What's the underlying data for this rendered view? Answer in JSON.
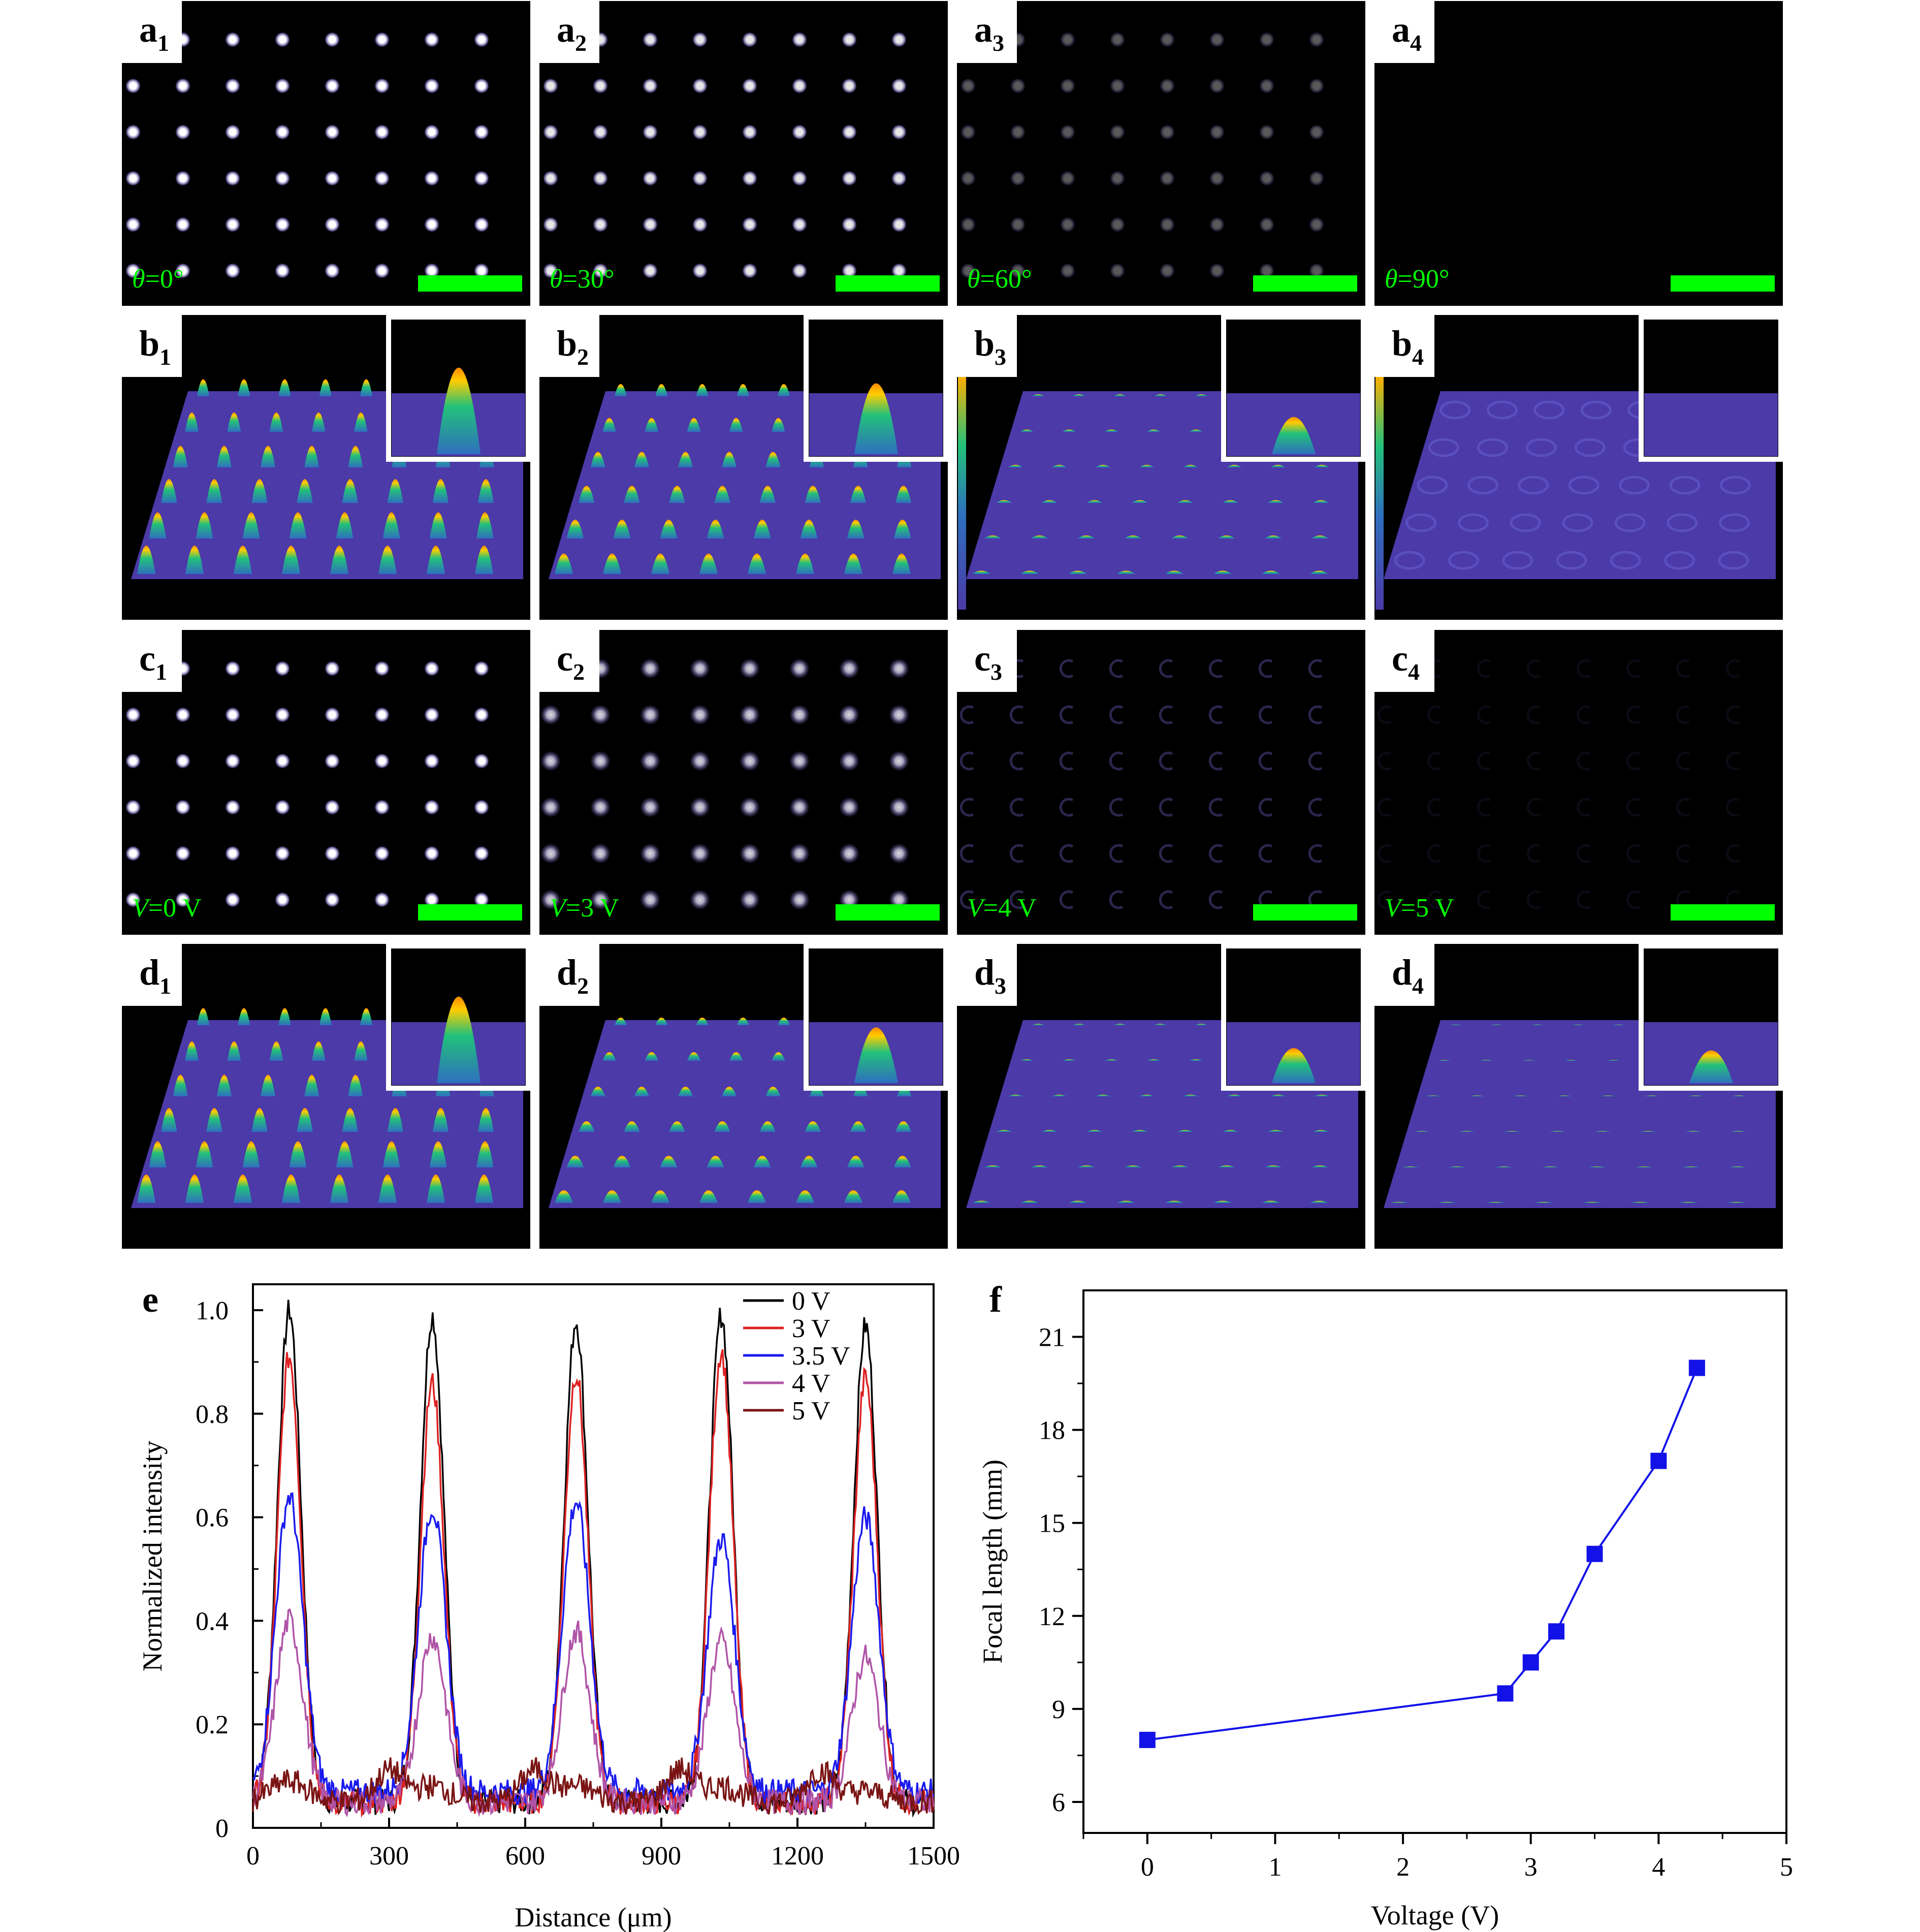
{
  "figure": {
    "colors": {
      "panel_bg": "#000000",
      "spot": "#ffffff",
      "spot_halo": "#c9b8ff",
      "scale_bar": "#00ff00",
      "label_text_green": "#00ff00",
      "surface": "#4b3aa8",
      "peak_tip": "#ffcc00",
      "peak_mid": "#22c17a",
      "peak_base": "#2f6fbf"
    },
    "rows": [
      {
        "row": "a",
        "panels": [
          {
            "letter": "a",
            "sub": "1",
            "cond_var": "θ",
            "cond_val": "=0°",
            "brightness": 1.0,
            "shape": "dot"
          },
          {
            "letter": "a",
            "sub": "2",
            "cond_var": "θ",
            "cond_val": "=30°",
            "brightness": 0.9,
            "shape": "dot"
          },
          {
            "letter": "a",
            "sub": "3",
            "cond_var": "θ",
            "cond_val": "=60°",
            "brightness": 0.35,
            "shape": "dot"
          },
          {
            "letter": "a",
            "sub": "4",
            "cond_var": "θ",
            "cond_val": "=90°",
            "brightness": 0.0,
            "shape": "dot"
          }
        ]
      },
      {
        "row": "b",
        "panels": [
          {
            "letter": "b",
            "sub": "1",
            "peak_height": 1.0
          },
          {
            "letter": "b",
            "sub": "2",
            "peak_height": 0.72
          },
          {
            "letter": "b",
            "sub": "3",
            "peak_height": 0.12
          },
          {
            "letter": "b",
            "sub": "4",
            "peak_height": 0.0
          }
        ]
      },
      {
        "row": "c",
        "panels": [
          {
            "letter": "c",
            "sub": "1",
            "cond_var": "V",
            "cond_val": "=0 V",
            "brightness": 1.0,
            "shape": "dot"
          },
          {
            "letter": "c",
            "sub": "2",
            "cond_var": "V",
            "cond_val": "=3 V",
            "brightness": 0.85,
            "shape": "blur"
          },
          {
            "letter": "c",
            "sub": "3",
            "cond_var": "V",
            "cond_val": "=4 V",
            "brightness": 0.3,
            "shape": "ring"
          },
          {
            "letter": "c",
            "sub": "4",
            "cond_var": "V",
            "cond_val": "=5 V",
            "brightness": 0.08,
            "shape": "ring"
          }
        ]
      },
      {
        "row": "d",
        "panels": [
          {
            "letter": "d",
            "sub": "1",
            "peak_height": 1.0
          },
          {
            "letter": "d",
            "sub": "2",
            "peak_height": 0.45
          },
          {
            "letter": "d",
            "sub": "3",
            "peak_height": 0.08
          },
          {
            "letter": "d",
            "sub": "4",
            "peak_height": 0.04
          }
        ]
      }
    ]
  },
  "chart_data": [
    {
      "panel_label": "e",
      "type": "line",
      "xlabel": "Distance (μm)",
      "ylabel": "Normalized intensity",
      "xlim": [
        0,
        1500
      ],
      "ylim": [
        0,
        1.05
      ],
      "xticks": [
        0,
        300,
        600,
        900,
        1200,
        1500
      ],
      "yticks": [
        0,
        0.2,
        0.4,
        0.6,
        0.8,
        1.0
      ],
      "ytick_labels": [
        "0",
        "0.2",
        "0.4",
        "0.6",
        "0.8",
        "1.0"
      ],
      "legend_position": "top-right",
      "peak_positions": [
        80,
        395,
        712,
        1032,
        1350
      ],
      "series": [
        {
          "name": "0 V",
          "color": "#000000",
          "peaks": [
            1.0,
            0.99,
            0.98,
            0.99,
            0.97
          ],
          "baseline": 0.05,
          "width": 26
        },
        {
          "name": "3 V",
          "color": "#dd2222",
          "peaks": [
            0.91,
            0.86,
            0.88,
            0.92,
            0.87
          ],
          "baseline": 0.05,
          "width": 26
        },
        {
          "name": "3.5 V",
          "color": "#1a1aee",
          "peaks": [
            0.64,
            0.62,
            0.63,
            0.56,
            0.6
          ],
          "baseline": 0.07,
          "width": 30
        },
        {
          "name": "4 V",
          "color": "#b054a8",
          "peaks": [
            0.4,
            0.37,
            0.38,
            0.36,
            0.33
          ],
          "baseline": 0.05,
          "width": 30
        },
        {
          "name": "5 V",
          "color": "#7a1414",
          "peaks": [
            0.09,
            0.08,
            0.08,
            0.08,
            0.07
          ],
          "baseline": 0.05,
          "width": 40,
          "side_peaks": [
            300,
            620,
            940,
            1250
          ],
          "side_height": 0.11
        }
      ]
    },
    {
      "panel_label": "f",
      "type": "scatter",
      "xlabel": "Voltage (V)",
      "ylabel": "Focal length (mm)",
      "xlim": [
        -0.5,
        5
      ],
      "ylim": [
        5,
        22.5
      ],
      "xticks": [
        0,
        1,
        2,
        3,
        4,
        5
      ],
      "yticks": [
        6,
        9,
        12,
        15,
        18,
        21
      ],
      "marker": "square",
      "color": "#1212e8",
      "points": [
        {
          "x": 0,
          "y": 8
        },
        {
          "x": 2.8,
          "y": 9.5
        },
        {
          "x": 3.0,
          "y": 10.5
        },
        {
          "x": 3.2,
          "y": 11.5
        },
        {
          "x": 3.5,
          "y": 14
        },
        {
          "x": 4.0,
          "y": 17
        },
        {
          "x": 4.3,
          "y": 20
        }
      ]
    }
  ]
}
